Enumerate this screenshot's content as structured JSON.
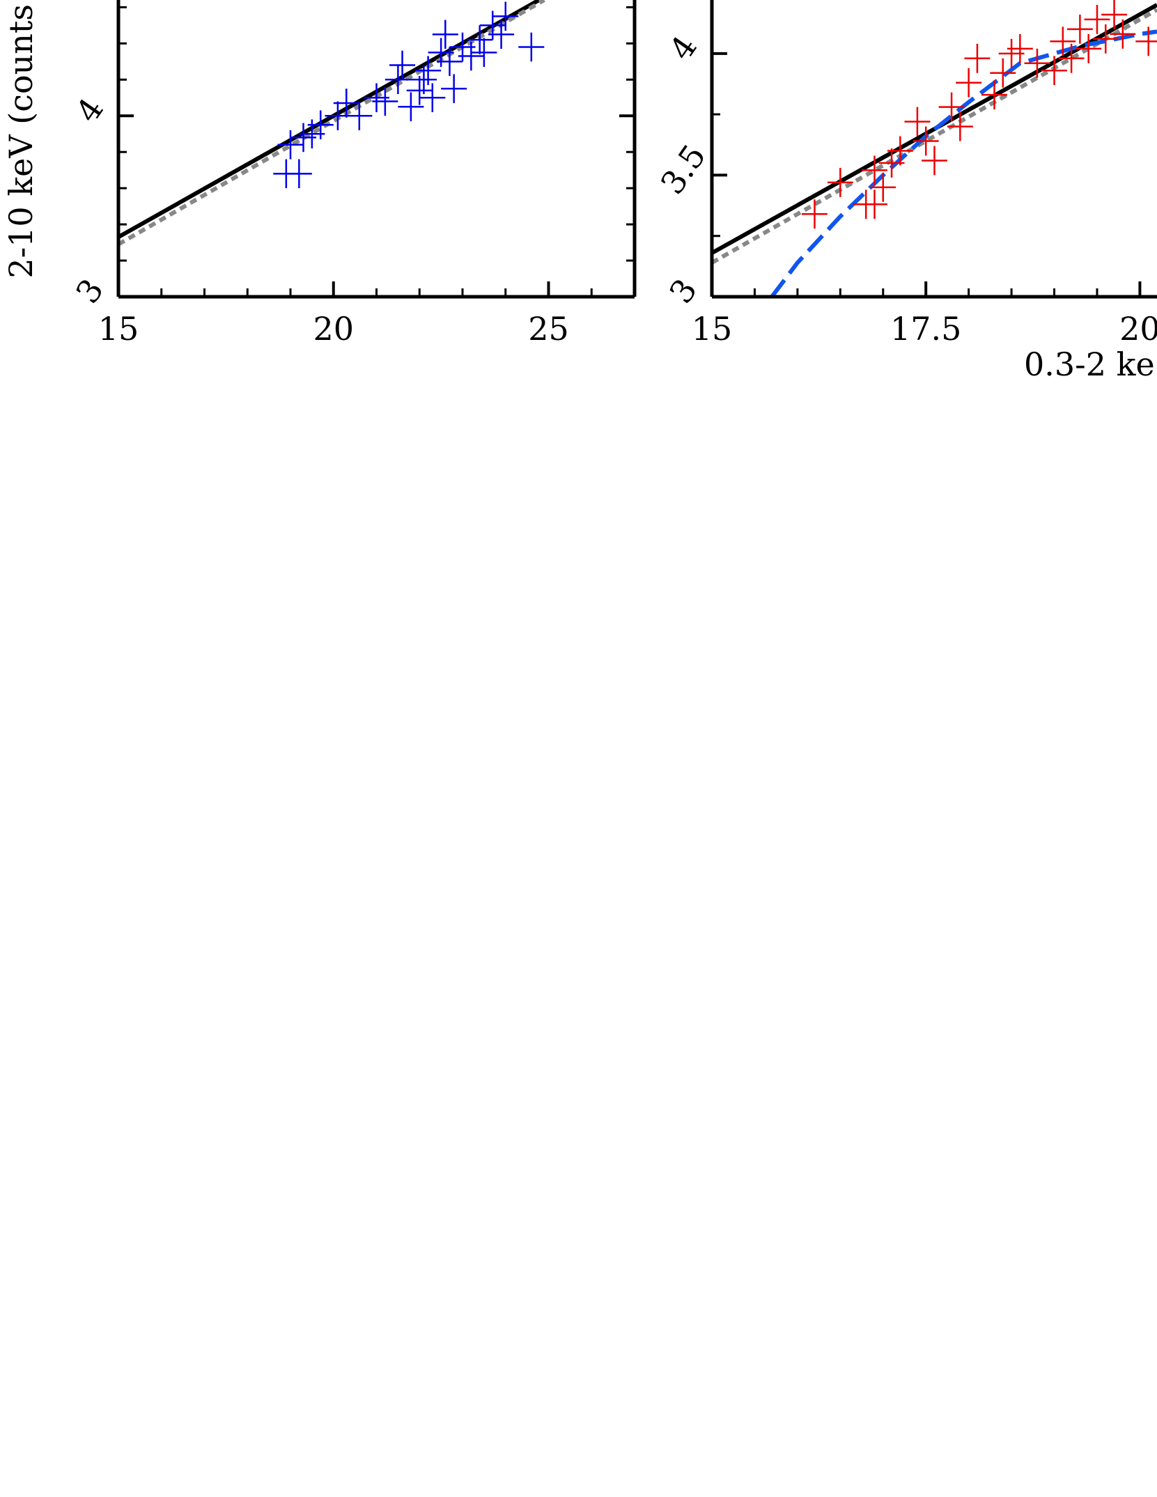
{
  "chart_data": [
    {
      "type": "scatter",
      "ylabel": "2-10 keV (counts",
      "xlim": [
        15,
        27
      ],
      "ylim": [
        3,
        4.64
      ],
      "xticks": [
        15,
        20,
        25
      ],
      "yticks": [
        3,
        4
      ],
      "xminorticks": [
        16,
        17,
        18,
        19,
        21,
        22,
        23,
        24,
        26
      ],
      "yminorticks": [
        3.2,
        3.4,
        3.6,
        3.8,
        4.2,
        4.4,
        4.6
      ],
      "series": [
        {
          "color": "#0000ee",
          "xerr": 0.3,
          "yerr": 0.08,
          "x": [
            18.9,
            19.2,
            19.0,
            19.3,
            19.5,
            19.7,
            20.1,
            20.3,
            20.6,
            21.0,
            21.2,
            21.5,
            21.8,
            22.0,
            22.2,
            22.3,
            22.5,
            22.7,
            22.8,
            23.0,
            23.2,
            23.4,
            23.5,
            23.7,
            23.9,
            24.0,
            24.6,
            22.6,
            22.1,
            21.6
          ],
          "y": [
            3.68,
            3.68,
            3.84,
            3.88,
            3.9,
            3.95,
            4.0,
            4.07,
            4.0,
            4.1,
            4.08,
            4.2,
            4.05,
            4.14,
            4.25,
            4.1,
            4.35,
            4.3,
            4.15,
            4.38,
            4.33,
            4.42,
            4.35,
            4.5,
            4.45,
            4.55,
            4.38,
            4.45,
            4.2,
            4.28
          ]
        }
      ],
      "fits": [
        {
          "color": "#000000",
          "dash": "none",
          "width": 6,
          "x": [
            15,
            24.78
          ],
          "y": [
            3.33,
            4.64
          ]
        },
        {
          "color": "#888888",
          "dash": "10 7",
          "width": 6,
          "x": [
            15,
            24.9
          ],
          "y": [
            3.29,
            4.64
          ]
        }
      ]
    },
    {
      "type": "scatter",
      "xlabel": "0.3-2 ke",
      "xlim": [
        15,
        20.2
      ],
      "ylim": [
        3,
        4.22
      ],
      "xticks": [
        15,
        17.5,
        20
      ],
      "yticks": [
        3,
        3.5,
        4
      ],
      "xminorticks": [
        15.5,
        16,
        16.5,
        17,
        18,
        18.5,
        19,
        19.5
      ],
      "yminorticks": [
        3.25,
        3.75
      ],
      "series": [
        {
          "color": "#ee0000",
          "xerr": 0.15,
          "yerr": 0.06,
          "x": [
            16.2,
            16.5,
            16.8,
            16.9,
            17.0,
            17.2,
            17.4,
            17.5,
            17.6,
            17.8,
            17.9,
            18.0,
            18.1,
            18.3,
            18.4,
            18.6,
            18.8,
            19.0,
            19.1,
            19.2,
            19.3,
            19.4,
            19.5,
            19.6,
            19.7,
            19.8,
            20.1,
            16.9,
            17.1,
            18.5
          ],
          "y": [
            3.34,
            3.47,
            3.38,
            3.52,
            3.45,
            3.6,
            3.72,
            3.64,
            3.56,
            3.78,
            3.7,
            3.88,
            3.98,
            3.83,
            3.92,
            4.02,
            3.96,
            3.93,
            4.05,
            3.98,
            4.1,
            4.02,
            4.14,
            4.06,
            4.16,
            4.08,
            4.05,
            3.38,
            3.55,
            4.0
          ]
        }
      ],
      "fits": [
        {
          "color": "#000000",
          "dash": "none",
          "width": 6,
          "x": [
            15,
            20.2
          ],
          "y": [
            3.18,
            4.2
          ]
        },
        {
          "color": "#888888",
          "dash": "10 7",
          "width": 6,
          "x": [
            15,
            20.2
          ],
          "y": [
            3.14,
            4.18
          ]
        },
        {
          "color": "#1155ee",
          "dash": "30 12",
          "width": 6,
          "x": [
            15.7,
            16.0,
            16.5,
            17.0,
            17.5,
            18.0,
            18.6,
            19.3,
            20.0,
            20.2
          ],
          "y": [
            3.0,
            3.14,
            3.33,
            3.5,
            3.66,
            3.8,
            3.96,
            4.03,
            4.08,
            4.09
          ]
        }
      ]
    }
  ]
}
